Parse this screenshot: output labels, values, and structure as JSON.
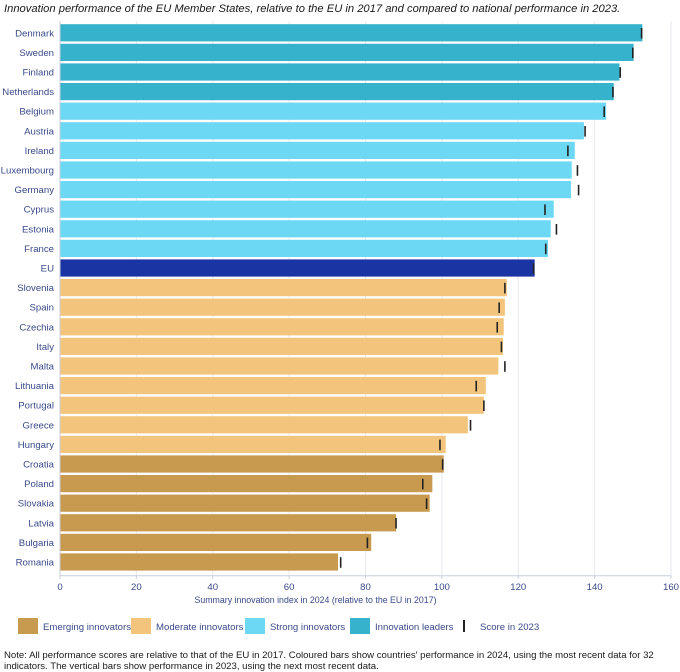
{
  "title": "Innovation performance of the EU Member States, relative to the EU in 2017 and compared to national performance in 2023.",
  "chart_data": {
    "type": "bar",
    "orientation": "horizontal",
    "xlabel": "Summary innovation index in 2024 (relative to the EU in 2017)",
    "xlim": [
      0,
      160
    ],
    "xticks": [
      0,
      20,
      40,
      60,
      80,
      100,
      120,
      140,
      160
    ],
    "categories": [
      "Denmark",
      "Sweden",
      "Finland",
      "Netherlands",
      "Belgium",
      "Austria",
      "Ireland",
      "Luxembourg",
      "Germany",
      "Cyprus",
      "Estonia",
      "France",
      "EU",
      "Slovenia",
      "Spain",
      "Czechia",
      "Italy",
      "Malta",
      "Lithuania",
      "Portugal",
      "Greece",
      "Hungary",
      "Croatia",
      "Poland",
      "Slovakia",
      "Latvia",
      "Bulgaria",
      "Romania"
    ],
    "values": [
      152.5,
      150.2,
      146.5,
      145.0,
      143.0,
      137.2,
      134.8,
      134.0,
      133.8,
      129.3,
      128.5,
      127.8,
      124.3,
      117.0,
      116.5,
      116.2,
      116.0,
      114.8,
      111.5,
      111.0,
      106.8,
      101.0,
      100.5,
      97.5,
      96.8,
      88.0,
      81.5,
      72.8
    ],
    "scores_2023": [
      152.3,
      150.0,
      146.7,
      144.8,
      142.5,
      137.5,
      133.0,
      135.5,
      135.8,
      127.0,
      130.0,
      127.2,
      124.0,
      116.5,
      115.0,
      114.5,
      115.6,
      116.5,
      109.0,
      111.0,
      107.5,
      99.5,
      100.2,
      95.0,
      96.0,
      88.0,
      80.5,
      73.5
    ],
    "groups": [
      "leader",
      "leader",
      "leader",
      "leader",
      "strong",
      "strong",
      "strong",
      "strong",
      "strong",
      "strong",
      "strong",
      "strong",
      "eu",
      "moderate",
      "moderate",
      "moderate",
      "moderate",
      "moderate",
      "moderate",
      "moderate",
      "moderate",
      "moderate",
      "emerging",
      "emerging",
      "emerging",
      "emerging",
      "emerging",
      "emerging"
    ],
    "group_colors": {
      "leader": "#36b2cc",
      "strong": "#6dd8f4",
      "eu": "#1a35a3",
      "moderate": "#f3c57c",
      "emerging": "#c79a4f"
    },
    "legend": [
      {
        "label": "Emerging innovators",
        "group": "emerging"
      },
      {
        "label": "Moderate innovators",
        "group": "moderate"
      },
      {
        "label": "Strong innovators",
        "group": "strong"
      },
      {
        "label": "Innovation leaders",
        "group": "leader"
      },
      {
        "label": "Score in 2023",
        "group": "marker"
      }
    ],
    "label_color": "#3a4a8a"
  },
  "note": "Note: All performance scores are relative to that of the EU in 2017. Coloured bars show countries' performance in 2024, using the most recent data for 32 indicators. The vertical bars show performance in 2023, using the next most recent data."
}
